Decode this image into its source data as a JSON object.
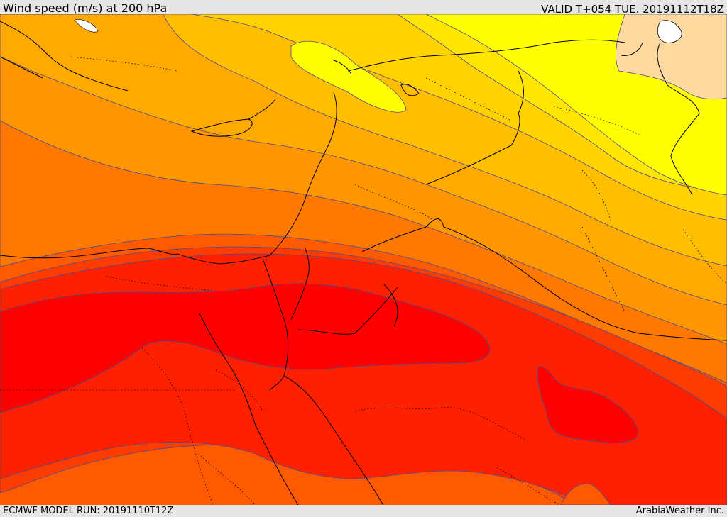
{
  "header": {
    "title": "Wind speed (m/s) at 200 hPa",
    "valid": "VALID T+054 TUE. 20191112T18Z"
  },
  "footer": {
    "model_run": "ECMWF MODEL RUN: 20191110T12Z",
    "credit": "ArabiaWeather Inc."
  },
  "map": {
    "variable": "wind speed",
    "level_hpa": 200,
    "units": "m/s",
    "colors": {
      "band_peach": "#ffdaa0",
      "band_yellow": "#ffff00",
      "band_gold1": "#ffe600",
      "band_gold2": "#ffd200",
      "band_amber1": "#ffbe00",
      "band_amber2": "#ffaa00",
      "band_orange1": "#ff9600",
      "band_orange2": "#ff7800",
      "band_orange3": "#ff5a00",
      "band_red1": "#ff3c00",
      "band_red2": "#ff2000",
      "band_red3": "#ff0000",
      "contour": "#4a4a8a",
      "coast": "#000000",
      "water": "#ffffff"
    }
  }
}
